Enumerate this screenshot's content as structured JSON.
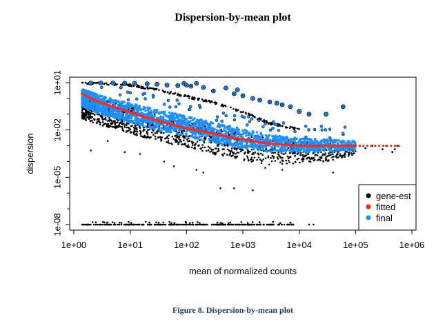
{
  "page": {
    "title": "Dispersion-by-mean plot",
    "caption": "Figure 8. Dispersion-by-mean plot"
  },
  "chart_data": {
    "type": "scatter",
    "title": "Dispersion-by-mean plot",
    "xlabel": "mean of normalized counts",
    "ylabel": "dispersion",
    "log_x": true,
    "log_y": true,
    "xlim": [
      1,
      1000000
    ],
    "ylim": [
      1e-09,
      10
    ],
    "x_ticks": [
      {
        "value": 1,
        "label": "1e+00"
      },
      {
        "value": 10,
        "label": "1e+01"
      },
      {
        "value": 100,
        "label": "1e+02"
      },
      {
        "value": 1000,
        "label": "1e+03"
      },
      {
        "value": 10000,
        "label": "1e+04"
      },
      {
        "value": 100000,
        "label": "1e+05"
      },
      {
        "value": 1000000,
        "label": "1e+06"
      }
    ],
    "y_ticks": [
      {
        "value": 10,
        "label": "1e+01"
      },
      {
        "value": 0.01,
        "label": "1e-02"
      },
      {
        "value": 1e-05,
        "label": "1e-05"
      },
      {
        "value": 1e-08,
        "label": "1e-08"
      }
    ],
    "grid": false,
    "legend_position": "bottom-right",
    "legend": [
      {
        "name": "gene-est",
        "color": "#000000"
      },
      {
        "name": "fitted",
        "color": "#ff2a1a"
      },
      {
        "name": "final",
        "color": "#1e90ff"
      }
    ],
    "series": [
      {
        "name": "fitted",
        "color": "#ff2a1a",
        "points": [
          [
            1.4,
            2.0
          ],
          [
            2,
            1.0
          ],
          [
            3,
            0.55
          ],
          [
            5,
            0.3
          ],
          [
            10,
            0.13
          ],
          [
            20,
            0.06
          ],
          [
            50,
            0.025
          ],
          [
            100,
            0.013
          ],
          [
            200,
            0.008
          ],
          [
            500,
            0.004
          ],
          [
            1000,
            0.0025
          ],
          [
            2000,
            0.0016
          ],
          [
            5000,
            0.0012
          ],
          [
            10000,
            0.001
          ],
          [
            30000,
            0.001
          ],
          [
            100000,
            0.001
          ],
          [
            600000,
            0.001
          ]
        ]
      },
      {
        "name": "final",
        "color": "#1e90ff",
        "band": [
          [
            1.4,
            0.3,
            4.0
          ],
          [
            3,
            0.1,
            1.5
          ],
          [
            10,
            0.03,
            0.5
          ],
          [
            30,
            0.01,
            0.2
          ],
          [
            100,
            0.004,
            0.08
          ],
          [
            300,
            0.0015,
            0.03
          ],
          [
            1000,
            0.0007,
            0.012
          ],
          [
            3000,
            0.0004,
            0.005
          ],
          [
            10000,
            0.0004,
            0.003
          ],
          [
            30000,
            0.0004,
            0.0025
          ],
          [
            100000,
            0.0005,
            0.002
          ]
        ],
        "outliers": [
          [
            2,
            9.5
          ],
          [
            3,
            9.5
          ],
          [
            5,
            9.5
          ],
          [
            8,
            9.3
          ],
          [
            12,
            9.0
          ],
          [
            20,
            8.5
          ],
          [
            30,
            8.0
          ],
          [
            45,
            7.0
          ],
          [
            70,
            6.5
          ],
          [
            90,
            9.0
          ],
          [
            100,
            7.0
          ],
          [
            120,
            6.0
          ],
          [
            150,
            9.0
          ],
          [
            200,
            5.0
          ],
          [
            300,
            3.0
          ],
          [
            500,
            4.5
          ],
          [
            700,
            2.0
          ],
          [
            800,
            3.5
          ],
          [
            1000,
            1.5
          ],
          [
            1500,
            1.0
          ],
          [
            2000,
            0.8
          ],
          [
            3000,
            0.6
          ],
          [
            4000,
            0.5
          ],
          [
            5000,
            0.4
          ],
          [
            7000,
            0.3
          ],
          [
            10000,
            0.15
          ],
          [
            15000,
            0.1
          ],
          [
            30000,
            0.1
          ],
          [
            60000,
            0.3
          ]
        ]
      },
      {
        "name": "gene-est",
        "color": "#000000",
        "band": [
          [
            1.4,
            0.05,
            3.0
          ],
          [
            3,
            0.02,
            1.0
          ],
          [
            10,
            0.006,
            0.3
          ],
          [
            30,
            0.002,
            0.1
          ],
          [
            100,
            0.0008,
            0.04
          ],
          [
            300,
            0.0003,
            0.015
          ],
          [
            1000,
            0.00012,
            0.006
          ],
          [
            3000,
            6e-05,
            0.003
          ],
          [
            10000,
            8e-05,
            0.002
          ],
          [
            30000,
            0.0001,
            0.0015
          ],
          [
            100000,
            0.0002,
            0.0012
          ]
        ],
        "upper_line": [
          [
            1.4,
            10
          ],
          [
            3,
            10
          ],
          [
            10,
            8
          ],
          [
            30,
            4
          ],
          [
            100,
            1.5
          ],
          [
            300,
            0.6
          ],
          [
            1000,
            0.15
          ],
          [
            3000,
            0.03
          ],
          [
            10000,
            0.012
          ]
        ],
        "outliers": [
          [
            2.0,
            0.0005
          ],
          [
            4,
            0.002
          ],
          [
            8,
            0.0004
          ],
          [
            15,
            0.0003
          ],
          [
            40,
            0.0001
          ],
          [
            60,
            5e-05
          ],
          [
            150,
            3e-05
          ],
          [
            200,
            2e-05
          ],
          [
            400,
            2e-06
          ],
          [
            700,
            2e-06
          ],
          [
            1500,
            1.5e-06
          ],
          [
            2500,
            4e-05
          ],
          [
            5000,
            3e-05
          ],
          [
            40000,
            2e-05
          ]
        ],
        "zero_floor": {
          "y": 1e-08,
          "x_min": 1.4,
          "x_max": 8000,
          "extras": [
            15000,
            18000
          ]
        },
        "right_tail": [
          [
            70000,
            0.001
          ],
          [
            120000,
            0.001
          ],
          [
            150000,
            0.0007
          ],
          [
            200000,
            0.001
          ],
          [
            300000,
            0.0006
          ],
          [
            350000,
            0.001
          ],
          [
            450000,
            0.0004
          ],
          [
            500000,
            0.0006
          ],
          [
            550000,
            0.001
          ]
        ]
      }
    ]
  }
}
